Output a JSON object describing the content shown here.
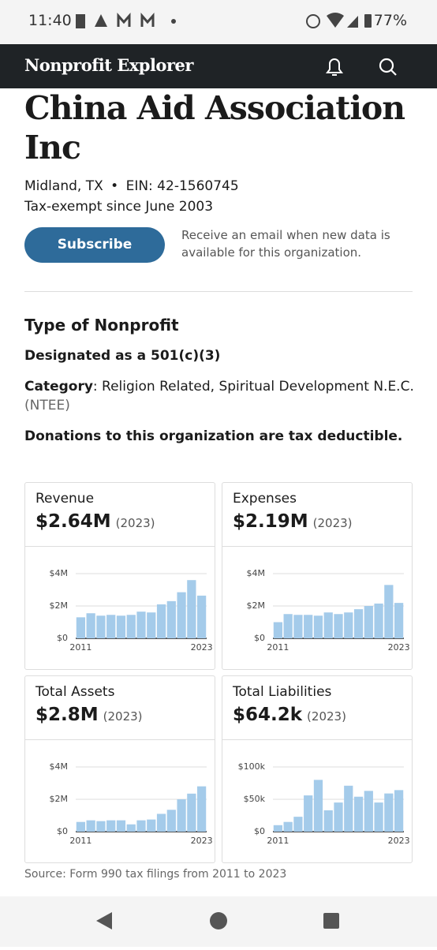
{
  "status_bar": {
    "time": "11:40",
    "battery": "77%"
  },
  "app_bar": {
    "title": "Nonprofit Explorer"
  },
  "org": {
    "name": "China Aid Association Inc",
    "location": "Midland, TX",
    "separator": "•",
    "ein": "EIN: 42-1560745",
    "since": "Tax-exempt since June 2003",
    "subscribe": "Subscribe",
    "subscribe_note": "Receive an email when new data is available for this organization."
  },
  "type_section": {
    "heading": "Type of Nonprofit",
    "designated_prefix": "Designated as a ",
    "designated_link": "501(c)(3)",
    "category_label": "Category",
    "category_text": ": Religion Related, Spiritual Development N.E.C.",
    "category_link": "(NTEE)",
    "donations": "Donations to this organization are tax deductible."
  },
  "chart_data": [
    {
      "type": "bar",
      "title": "Revenue",
      "headline": "$2.64M",
      "headline_note": "(2023)",
      "categories": [
        "2011",
        null,
        null,
        null,
        null,
        null,
        null,
        null,
        null,
        null,
        null,
        null,
        "2023"
      ],
      "values": [
        1300000,
        1550000,
        1400000,
        1450000,
        1400000,
        1450000,
        1650000,
        1600000,
        2100000,
        2300000,
        2850000,
        3600000,
        2640000
      ],
      "color": "#a4cbea",
      "ylim": [
        0,
        4000000
      ],
      "yticks": [
        {
          "value": 0,
          "label": "$0"
        },
        {
          "value": 2000000,
          "label": "$2M"
        },
        {
          "value": 4000000,
          "label": "$4M"
        }
      ],
      "grid": true
    },
    {
      "type": "bar",
      "title": "Expenses",
      "headline": "$2.19M",
      "headline_note": "(2023)",
      "categories": [
        "2011",
        null,
        null,
        null,
        null,
        null,
        null,
        null,
        null,
        null,
        null,
        null,
        "2023"
      ],
      "values": [
        1000000,
        1500000,
        1450000,
        1450000,
        1400000,
        1600000,
        1500000,
        1600000,
        1800000,
        2000000,
        2150000,
        3300000,
        2190000
      ],
      "color": "#a4cbea",
      "ylim": [
        0,
        4000000
      ],
      "yticks": [
        {
          "value": 0,
          "label": "$0"
        },
        {
          "value": 2000000,
          "label": "$2M"
        },
        {
          "value": 4000000,
          "label": "$4M"
        }
      ],
      "grid": true
    },
    {
      "type": "bar",
      "title": "Total Assets",
      "headline": "$2.8M",
      "headline_note": "(2023)",
      "categories": [
        "2011",
        null,
        null,
        null,
        null,
        null,
        null,
        null,
        null,
        null,
        null,
        null,
        "2023"
      ],
      "values": [
        600000,
        700000,
        650000,
        700000,
        700000,
        450000,
        700000,
        750000,
        1100000,
        1350000,
        2000000,
        2350000,
        2800000
      ],
      "color": "#a4cbea",
      "ylim": [
        0,
        4000000
      ],
      "yticks": [
        {
          "value": 0,
          "label": "$0"
        },
        {
          "value": 2000000,
          "label": "$2M"
        },
        {
          "value": 4000000,
          "label": "$4M"
        }
      ],
      "grid": true
    },
    {
      "type": "bar",
      "title": "Total Liabilities",
      "headline": "$64.2k",
      "headline_note": "(2023)",
      "categories": [
        "2011",
        null,
        null,
        null,
        null,
        null,
        null,
        null,
        null,
        null,
        null,
        null,
        "2023"
      ],
      "values": [
        10000,
        15000,
        23000,
        56000,
        80000,
        33000,
        45000,
        71000,
        54000,
        63000,
        45000,
        59000,
        64200
      ],
      "color": "#a4cbea",
      "ylim": [
        0,
        100000
      ],
      "yticks": [
        {
          "value": 0,
          "label": "$0"
        },
        {
          "value": 50000,
          "label": "$50k"
        },
        {
          "value": 100000,
          "label": "$100k"
        }
      ],
      "grid": true
    }
  ],
  "source": "Source: Form 990 tax filings from 2011 to 2023"
}
